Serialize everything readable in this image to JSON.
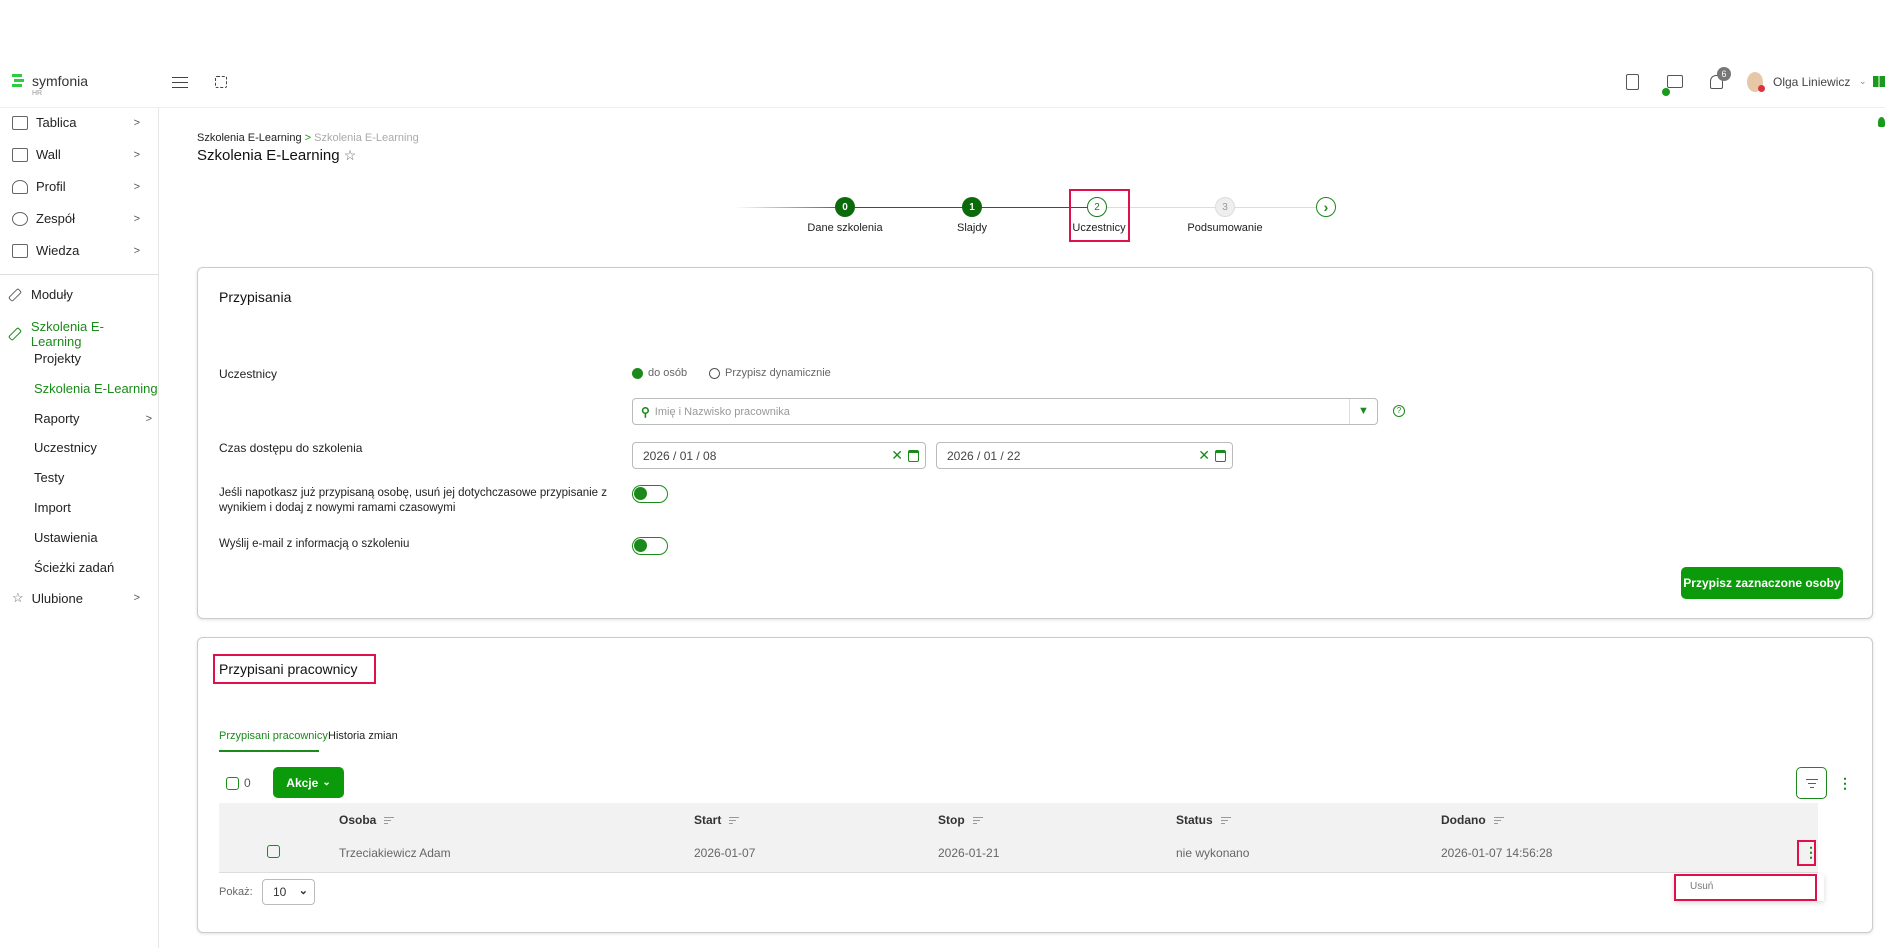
{
  "app": {
    "logo": "symfonia",
    "logo_sub": "HR",
    "accent": "#0a9a0a",
    "highlight": "#e0104a"
  },
  "topbar": {
    "user_name": "Olga Liniewicz",
    "notifications_count": "6",
    "icons": [
      "menu-icon",
      "fullscreen-icon",
      "clipboard-icon",
      "chat-icon",
      "bell-icon",
      "apps-grid-icon"
    ]
  },
  "sidebar": {
    "items": [
      {
        "label": "Tablica",
        "icon": "monitor-icon"
      },
      {
        "label": "Wall",
        "icon": "wall-icon"
      },
      {
        "label": "Profil",
        "icon": "user-icon"
      },
      {
        "label": "Zespół",
        "icon": "team-icon"
      },
      {
        "label": "Wiedza",
        "icon": "document-icon"
      },
      {
        "label": "Moduły",
        "icon": "wrench-icon"
      },
      {
        "label": "Szkolenia E-Learning",
        "icon": "wrench-icon"
      }
    ],
    "subitems": [
      "Projekty",
      "Szkolenia E-Learning",
      "Raporty",
      "Uczestnicy",
      "Testy",
      "Import",
      "Ustawienia",
      "Ścieżki zadań"
    ],
    "favorites": "Ulubione"
  },
  "breadcrumb": {
    "parent": "Szkolenia E-Learning",
    "sep": ">",
    "current": "Szkolenia E-Learning"
  },
  "page_title": "Szkolenia E-Learning",
  "stepper": {
    "steps": [
      {
        "num": "0",
        "label": "Dane szkolenia",
        "state": "done"
      },
      {
        "num": "1",
        "label": "Slajdy",
        "state": "done"
      },
      {
        "num": "2",
        "label": "Uczestnicy",
        "state": "current"
      },
      {
        "num": "3",
        "label": "Podsumowanie",
        "state": "pending"
      }
    ],
    "next": "›"
  },
  "assign": {
    "title": "Przypisania",
    "participants_label": "Uczestnicy",
    "radio1": "do osób",
    "radio2": "Przypisz dynamicznie",
    "radio_selected": "do osób",
    "search_placeholder": "Imię i Nazwisko pracownika",
    "access_label": "Czas dostępu do szkolenia",
    "date_from": "2026 / 01 / 08",
    "date_to": "2026 / 01 / 22",
    "replace_label_1": "Jeśli napotkasz już przypisaną osobę, usuń jej dotychczasowe przypisanie z",
    "replace_label_2": "wynikiem i dodaj z nowymi ramami czasowymi",
    "replace_on": true,
    "email_label": "Wyślij e-mail z informacją o szkoleniu",
    "email_on": true,
    "submit": "Przypisz zaznaczone osoby"
  },
  "assigned": {
    "title": "Przypisani pracownicy",
    "tabs": [
      "Przypisani pracownicy",
      "Historia zmian"
    ],
    "selected_count": "0",
    "actions": "Akcje",
    "columns": [
      "Osoba",
      "Start",
      "Stop",
      "Status",
      "Dodano"
    ],
    "rows": [
      [
        "Trzeciakiewicz Adam",
        "2026-01-07",
        "2026-01-21",
        "nie wykonano",
        "2026-01-07 14:56:28"
      ]
    ],
    "show_label": "Pokaż:",
    "page_size": "10",
    "menu_item": "Usuń"
  }
}
